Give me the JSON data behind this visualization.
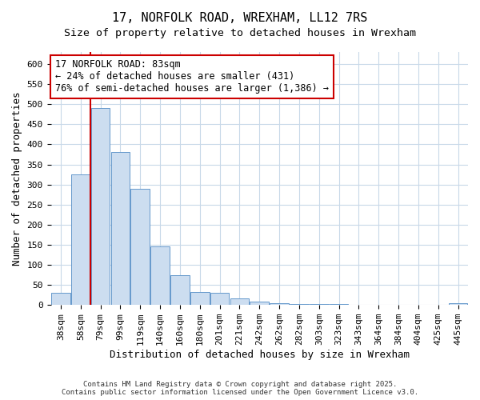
{
  "title": "17, NORFOLK ROAD, WREXHAM, LL12 7RS",
  "subtitle": "Size of property relative to detached houses in Wrexham",
  "xlabel": "Distribution of detached houses by size in Wrexham",
  "ylabel": "Number of detached properties",
  "categories": [
    "38sqm",
    "58sqm",
    "79sqm",
    "99sqm",
    "119sqm",
    "140sqm",
    "160sqm",
    "180sqm",
    "201sqm",
    "221sqm",
    "242sqm",
    "262sqm",
    "282sqm",
    "303sqm",
    "323sqm",
    "343sqm",
    "364sqm",
    "384sqm",
    "404sqm",
    "425sqm",
    "445sqm"
  ],
  "values": [
    30,
    325,
    490,
    380,
    290,
    145,
    75,
    32,
    30,
    16,
    8,
    4,
    3,
    2,
    2,
    1,
    1,
    0,
    0,
    0,
    4
  ],
  "bar_color": "#ccddf0",
  "bar_edge_color": "#6699cc",
  "vline_x_index": 1.5,
  "vline_color": "#cc0000",
  "annotation_line1": "17 NORFOLK ROAD: 83sqm",
  "annotation_line2": "← 24% of detached houses are smaller (431)",
  "annotation_line3": "76% of semi-detached houses are larger (1,386) →",
  "annotation_box_color": "#ffffff",
  "annotation_box_edge_color": "#cc0000",
  "ylim": [
    0,
    630
  ],
  "yticks": [
    0,
    50,
    100,
    150,
    200,
    250,
    300,
    350,
    400,
    450,
    500,
    550,
    600
  ],
  "bg_color": "#ffffff",
  "plot_bg_color": "#ffffff",
  "grid_color": "#c8d8e8",
  "footer": "Contains HM Land Registry data © Crown copyright and database right 2025.\nContains public sector information licensed under the Open Government Licence v3.0.",
  "title_fontsize": 11,
  "axis_label_fontsize": 9,
  "tick_fontsize": 8,
  "annotation_fontsize": 8.5,
  "footer_fontsize": 6.5
}
